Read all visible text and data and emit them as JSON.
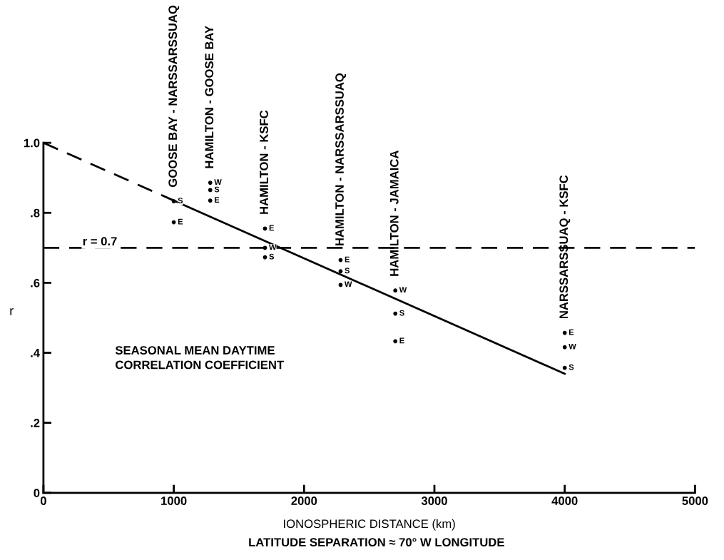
{
  "chart_data": {
    "type": "line",
    "xlabel": "IONOSPHERIC DISTANCE (km)",
    "ylabel": "r",
    "xlim": [
      0,
      5000
    ],
    "xticks": [
      0,
      1000,
      2000,
      3000,
      4000,
      5000
    ],
    "ylim": [
      0,
      1.0
    ],
    "yticks": [
      {
        "value": 0,
        "label": "0"
      },
      {
        "value": 0.2,
        "label": ".2"
      },
      {
        "value": 0.4,
        "label": ".4"
      },
      {
        "value": 0.6,
        "label": ".6"
      },
      {
        "value": 0.8,
        "label": ".8"
      },
      {
        "value": 1.0,
        "label": "1.0"
      }
    ],
    "grid": false,
    "series": [
      {
        "color": "#000000",
        "line_style": "dashed",
        "x": [
          0,
          1000
        ],
        "values": [
          1.0,
          0.835
        ]
      },
      {
        "color": "#000000",
        "line_style": "solid",
        "x": [
          1000,
          4000
        ],
        "values": [
          0.835,
          0.34
        ]
      },
      {
        "type": "scatter",
        "name": "S",
        "color": "#000000",
        "x": [
          1000,
          1280,
          1700,
          2280,
          2700,
          4000
        ],
        "values": [
          0.833,
          0.865,
          0.673,
          0.633,
          0.512,
          0.357
        ]
      },
      {
        "type": "scatter",
        "name": "E",
        "color": "#000000",
        "x": [
          1000,
          1280,
          1700,
          2280,
          2700,
          4000
        ],
        "values": [
          0.773,
          0.835,
          0.755,
          0.665,
          0.433,
          0.457
        ]
      },
      {
        "type": "scatter",
        "name": "W",
        "color": "#000000",
        "x": [
          1280,
          1700,
          2280,
          2700,
          4000
        ],
        "values": [
          0.886,
          0.7,
          0.594,
          0.578,
          0.416
        ]
      }
    ],
    "ref_lines": [
      {
        "axis": "y",
        "value": 0.7,
        "label": "r = 0.7",
        "line_style": "dashed",
        "color": "#000000"
      }
    ],
    "annotations": [
      {
        "text": "GOOSE BAY - NARSSARSSUAQ",
        "x": 1000,
        "y": 0.833
      },
      {
        "text": "HAMILTON - GOOSE BAY",
        "x": 1280,
        "y": 0.886
      },
      {
        "text": "HAMILTON - KSFC",
        "x": 1700,
        "y": 0.755
      },
      {
        "text": "HAMILTON - NARSSARSSUAQ",
        "x": 2280,
        "y": 0.665
      },
      {
        "text": "HAMILTON - JAMAICA",
        "x": 2700,
        "y": 0.578
      },
      {
        "text": "NARSSARSSUAQ - KSFC",
        "x": 4000,
        "y": 0.457
      },
      "SEASONAL MEAN DAYTIME\nCORRELATION COEFFICIENT",
      "LATITUDE SEPARATION ≈ 70° W LONGITUDE"
    ]
  }
}
